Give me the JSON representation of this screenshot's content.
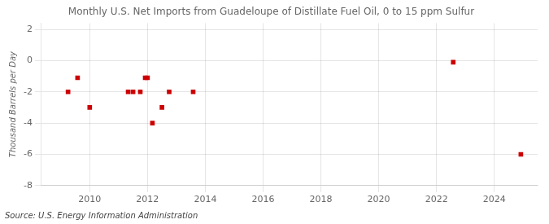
{
  "chart_data": {
    "type": "scatter",
    "title": "Monthly U.S. Net Imports from Guadeloupe of Distillate Fuel Oil, 0 to 15 ppm Sulfur",
    "ylabel": "Thousand Barrels per Day",
    "source": "Source: U.S. Energy Information Administration",
    "x": [
      2009.25,
      2009.58,
      2010.0,
      2011.33,
      2011.5,
      2011.75,
      2011.92,
      2012.0,
      2012.17,
      2012.5,
      2012.75,
      2013.58,
      2022.58,
      2024.92
    ],
    "values": [
      -2.0,
      -1.1,
      -3.0,
      -2.0,
      -2.0,
      -2.0,
      -1.1,
      -1.1,
      -4.0,
      -3.0,
      -2.0,
      -2.0,
      -0.1,
      -6.0
    ],
    "color": "#cc0000",
    "marker": "square",
    "xlim": [
      2008.33,
      2025.5
    ],
    "ylim": [
      -8,
      2.4
    ],
    "xticks": [
      2010,
      2012,
      2014,
      2016,
      2018,
      2020,
      2022,
      2024
    ],
    "yticks": [
      -8,
      -6,
      -4,
      -2,
      0,
      2
    ],
    "grid": true
  }
}
